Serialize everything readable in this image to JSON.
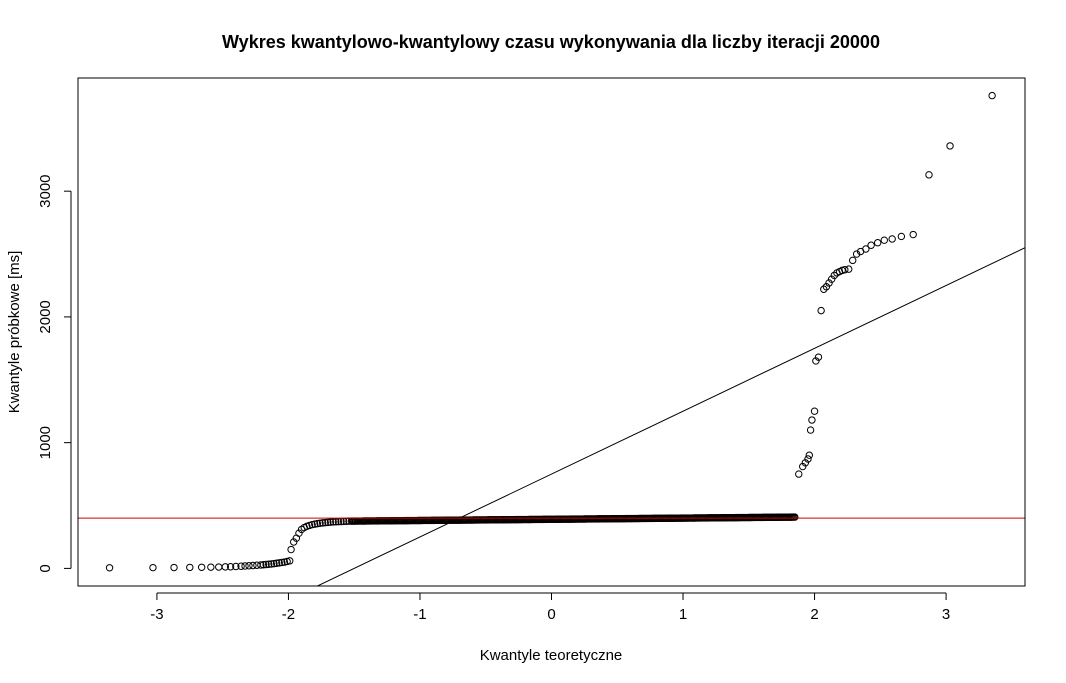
{
  "chart_data": {
    "type": "scatter",
    "title": "Wykres kwantylowo-kwantylowy czasu wykonywania dla liczby iteracji 20000",
    "xlabel": "Kwantyle teoretyczne",
    "ylabel": "Kwantyle próbkowe [ms]",
    "xlim": [
      -3.6,
      3.6
    ],
    "ylim": [
      -140,
      3900
    ],
    "xticks": [
      -3,
      -2,
      -1,
      0,
      1,
      2,
      3
    ],
    "xtick_labels": [
      "-3",
      "-2",
      "-1",
      "0",
      "1",
      "2",
      "3"
    ],
    "yticks": [
      0,
      1000,
      2000,
      3000
    ],
    "ytick_labels": [
      "0",
      "1000",
      "2000",
      "3000"
    ],
    "reference_line": {
      "slope": 500,
      "intercept": 750,
      "color": "#000000"
    },
    "horizontal_line": {
      "y": 400,
      "color": "#cc0000"
    },
    "points": {
      "tail_left_x": [
        -3.36,
        -3.03,
        -2.87,
        -2.75,
        -2.66,
        -2.59,
        -2.53,
        -2.48,
        -2.44,
        -2.4,
        -2.36,
        -2.33,
        -2.3,
        -2.27,
        -2.24,
        -2.21,
        -2.19,
        -2.17,
        -2.15,
        -2.13,
        -2.11,
        -2.09,
        -2.07,
        -2.05,
        -2.03,
        -2.01,
        -1.99
      ],
      "tail_left_y": [
        5,
        6,
        7,
        8,
        9,
        10,
        11,
        12,
        13,
        15,
        17,
        19,
        21,
        23,
        25,
        27,
        29,
        31,
        33,
        35,
        38,
        41,
        44,
        47,
        50,
        55,
        60
      ],
      "rise_left_x": [
        -1.98,
        -1.96,
        -1.94,
        -1.92,
        -1.9,
        -1.88,
        -1.86,
        -1.84,
        -1.82,
        -1.8,
        -1.78,
        -1.76,
        -1.74,
        -1.72,
        -1.7,
        -1.68,
        -1.66,
        -1.64,
        -1.62,
        -1.6,
        -1.58,
        -1.56,
        -1.54
      ],
      "rise_left_y": [
        150,
        210,
        240,
        280,
        310,
        325,
        335,
        342,
        348,
        352,
        356,
        359,
        362,
        364,
        366,
        368,
        370,
        371,
        372,
        373,
        374,
        375,
        376
      ],
      "plateau": {
        "x_start": -1.52,
        "x_end": 1.85,
        "y_start": 376,
        "y_end": 408,
        "count": 420
      },
      "tail_right_x": [
        1.88,
        1.91,
        1.93,
        1.95,
        1.96,
        1.97,
        1.98,
        2.0,
        2.01,
        2.03,
        2.05,
        2.07,
        2.09,
        2.11,
        2.13,
        2.15,
        2.17,
        2.19,
        2.21,
        2.23,
        2.26,
        2.29,
        2.32,
        2.35,
        2.39,
        2.43,
        2.48,
        2.53,
        2.59,
        2.66,
        2.75,
        2.87,
        3.03,
        3.35
      ],
      "tail_right_y": [
        750,
        810,
        840,
        870,
        900,
        1100,
        1180,
        1250,
        1650,
        1680,
        2050,
        2220,
        2240,
        2270,
        2300,
        2330,
        2350,
        2360,
        2370,
        2375,
        2380,
        2450,
        2500,
        2520,
        2540,
        2570,
        2590,
        2610,
        2620,
        2640,
        2655,
        3130,
        3360,
        3760
      ]
    }
  }
}
